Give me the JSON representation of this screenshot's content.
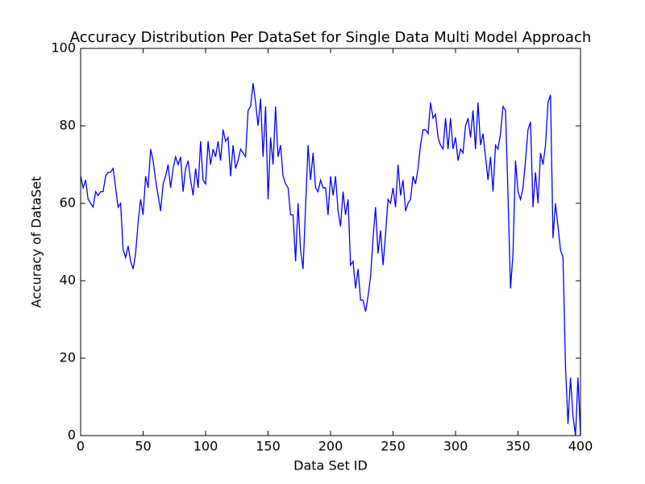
{
  "chart_data": {
    "type": "line",
    "title": "Accuracy Distribution Per DataSet for Single Data Multi Model Approach",
    "x_label": "Data Set ID",
    "y_label": "Accuracy of DataSet",
    "x": [
      0,
      2,
      4,
      6,
      8,
      10,
      12,
      14,
      16,
      18,
      20,
      22,
      24,
      26,
      28,
      30,
      32,
      34,
      36,
      38,
      40,
      42,
      44,
      46,
      48,
      50,
      52,
      54,
      56,
      58,
      60,
      62,
      64,
      66,
      68,
      70,
      72,
      74,
      76,
      78,
      80,
      82,
      84,
      86,
      88,
      90,
      92,
      94,
      96,
      98,
      100,
      102,
      104,
      106,
      108,
      110,
      112,
      114,
      116,
      118,
      120,
      122,
      124,
      126,
      128,
      130,
      132,
      134,
      136,
      138,
      140,
      142,
      144,
      146,
      148,
      150,
      152,
      154,
      156,
      158,
      160,
      162,
      164,
      166,
      168,
      170,
      172,
      174,
      176,
      178,
      180,
      182,
      184,
      186,
      188,
      190,
      192,
      194,
      196,
      198,
      200,
      202,
      204,
      206,
      208,
      210,
      212,
      214,
      216,
      218,
      220,
      222,
      224,
      226,
      228,
      230,
      232,
      234,
      236,
      238,
      240,
      242,
      244,
      246,
      248,
      250,
      252,
      254,
      256,
      258,
      260,
      262,
      264,
      266,
      268,
      270,
      272,
      274,
      276,
      278,
      280,
      282,
      284,
      286,
      288,
      290,
      292,
      294,
      296,
      298,
      300,
      302,
      304,
      306,
      308,
      310,
      312,
      314,
      316,
      318,
      320,
      322,
      324,
      326,
      328,
      330,
      332,
      334,
      336,
      338,
      340,
      342,
      344,
      346,
      348,
      350,
      352,
      354,
      356,
      358,
      360,
      362,
      364,
      366,
      368,
      370,
      372,
      374,
      376,
      378,
      380,
      382,
      384,
      386,
      388,
      390,
      392,
      394,
      396,
      398,
      400
    ],
    "series": [
      {
        "name": "accuracy",
        "color": "#0000ff",
        "values": [
          67,
          64,
          66,
          61,
          60,
          59,
          63,
          62,
          63,
          63,
          67,
          68,
          68,
          69,
          64,
          59,
          60,
          48,
          46,
          49,
          45,
          43,
          47,
          55,
          61,
          57,
          67,
          64,
          74,
          71,
          66,
          62,
          58,
          65,
          67,
          70,
          64,
          69,
          72,
          70,
          72,
          63,
          69,
          71,
          66,
          62,
          69,
          64,
          76,
          66,
          65,
          76,
          70,
          74,
          72,
          76,
          71,
          79,
          76,
          77,
          67,
          75,
          69,
          71,
          74,
          73,
          72,
          84,
          85,
          91,
          86,
          80,
          87,
          72,
          85,
          61,
          77,
          70,
          85,
          72,
          75,
          67,
          65,
          64,
          57,
          57,
          45,
          60,
          48,
          43,
          59,
          75,
          66,
          73,
          64,
          63,
          66,
          64,
          64,
          57,
          67,
          62,
          67,
          58,
          54,
          63,
          57,
          61,
          44,
          45,
          38,
          43,
          35,
          35,
          32,
          36,
          41,
          51,
          59,
          47,
          53,
          44,
          52,
          61,
          60,
          64,
          59,
          70,
          62,
          66,
          58,
          60,
          61,
          67,
          65,
          69,
          75,
          79,
          79,
          78,
          86,
          82,
          83,
          77,
          75,
          74,
          82,
          74,
          82,
          74,
          77,
          71,
          74,
          73,
          80,
          82,
          77,
          84,
          74,
          86,
          75,
          78,
          72,
          66,
          72,
          63,
          75,
          74,
          78,
          85,
          84,
          62,
          38,
          47,
          71,
          63,
          61,
          64,
          71,
          79,
          81,
          59,
          68,
          60,
          73,
          70,
          75,
          86,
          88,
          51,
          60,
          54,
          48,
          46,
          18,
          3,
          15,
          5,
          0,
          15,
          0
        ]
      }
    ],
    "xlim": [
      0,
      400
    ],
    "ylim": [
      0,
      100
    ],
    "xticks": [
      0,
      50,
      100,
      150,
      200,
      250,
      300,
      350,
      400
    ],
    "yticks": [
      0,
      20,
      40,
      60,
      80,
      100
    ]
  }
}
